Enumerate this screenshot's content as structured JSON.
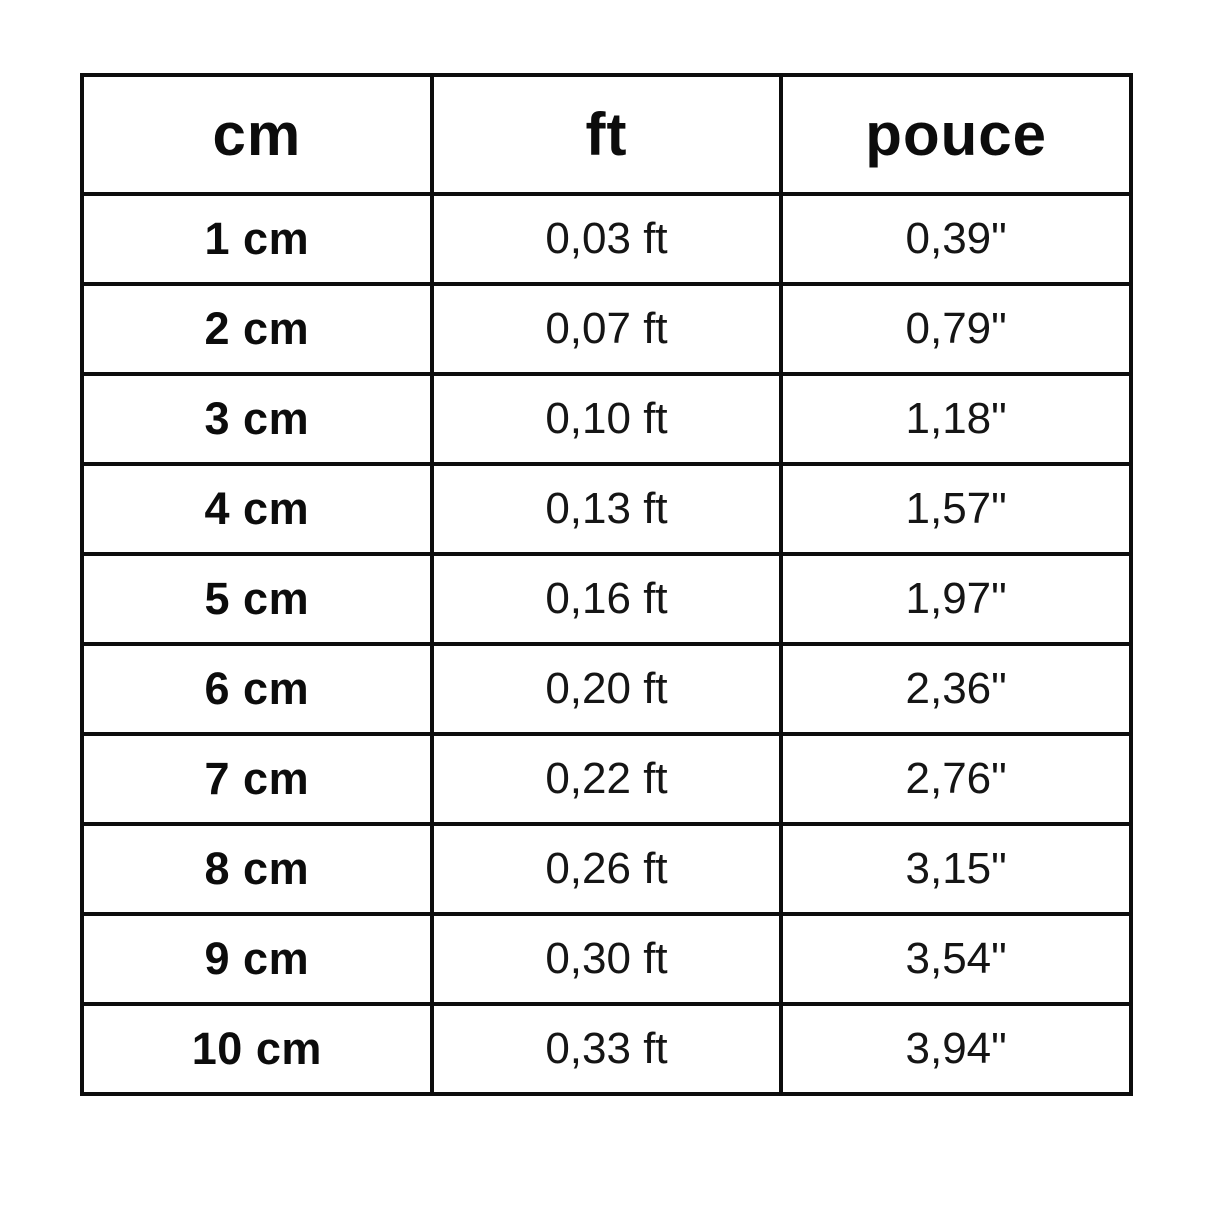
{
  "colors": {
    "background": "#ffffff",
    "border": "#0d0d0d",
    "text": "#101010"
  },
  "chart_data": {
    "type": "table",
    "title": "",
    "columns": [
      "cm",
      "ft",
      "pouce"
    ],
    "rows": [
      [
        "1 cm",
        "0,03 ft",
        "0,39\""
      ],
      [
        "2 cm",
        "0,07 ft",
        "0,79\""
      ],
      [
        "3 cm",
        "0,10 ft",
        "1,18\""
      ],
      [
        "4 cm",
        "0,13 ft",
        "1,57\""
      ],
      [
        "5 cm",
        "0,16 ft",
        "1,97\""
      ],
      [
        "6 cm",
        "0,20 ft",
        "2,36\""
      ],
      [
        "7 cm",
        "0,22 ft",
        "2,76\""
      ],
      [
        "8 cm",
        "0,26 ft",
        "3,15\""
      ],
      [
        "9 cm",
        "0,30 ft",
        "3,54\""
      ],
      [
        "10 cm",
        "0,33 ft",
        "3,94\""
      ]
    ],
    "numeric": {
      "cm": [
        1,
        2,
        3,
        4,
        5,
        6,
        7,
        8,
        9,
        10
      ],
      "ft": [
        0.03,
        0.07,
        0.1,
        0.13,
        0.16,
        0.2,
        0.22,
        0.26,
        0.3,
        0.33
      ],
      "pouce": [
        0.39,
        0.79,
        1.18,
        1.57,
        1.97,
        2.36,
        2.76,
        3.15,
        3.54,
        3.94
      ]
    },
    "layout": {
      "decimal_separator": ",",
      "header_bold": true,
      "first_column_bold": true,
      "grid": true
    }
  }
}
